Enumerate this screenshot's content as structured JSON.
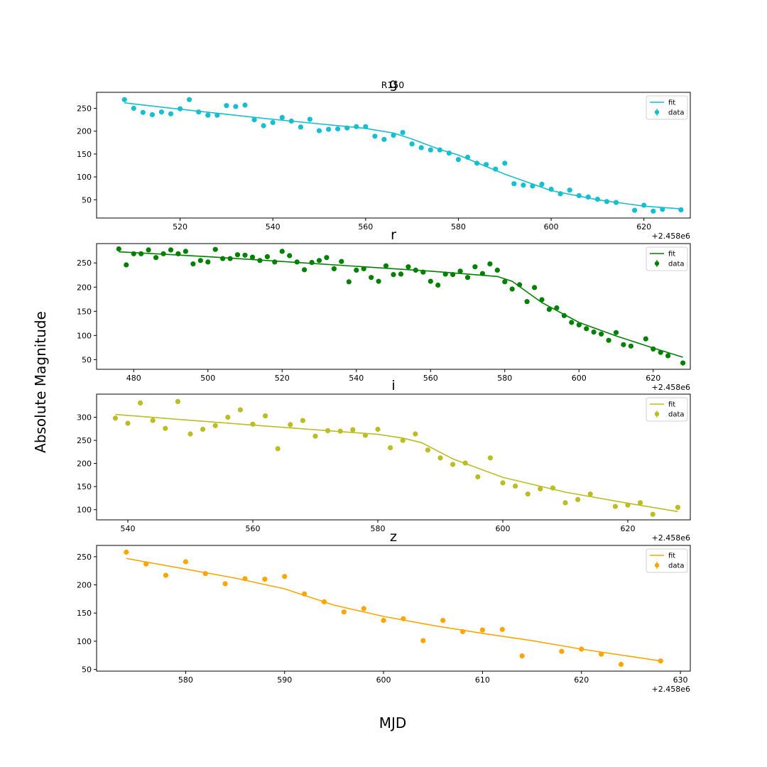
{
  "figure": {
    "suptitle": "R150",
    "ylabel": "Absolute Magnitude",
    "xlabel": "MJD",
    "x_offset_label": "+2.458e6"
  },
  "chart_data": [
    {
      "type": "scatter",
      "title": "g",
      "color": "#17becf",
      "xlim": [
        502,
        630
      ],
      "ylim": [
        10,
        285
      ],
      "xticks": [
        520,
        540,
        560,
        580,
        600,
        620
      ],
      "yticks": [
        50,
        100,
        150,
        200,
        250
      ],
      "legend": [
        "fit",
        "data"
      ],
      "legend_position": "upper right",
      "data": {
        "x": [
          508,
          510,
          512,
          514,
          516,
          518,
          520,
          522,
          524,
          526,
          528,
          530,
          532,
          534,
          536,
          538,
          540,
          542,
          544,
          546,
          548,
          550,
          552,
          554,
          556,
          558,
          560,
          562,
          564,
          566,
          568,
          570,
          572,
          574,
          576,
          578,
          580,
          582,
          584,
          586,
          588,
          590,
          592,
          594,
          596,
          598,
          600,
          602,
          604,
          606,
          608,
          610,
          612,
          614,
          618,
          620,
          622,
          624,
          628
        ],
        "y": [
          269,
          250,
          241,
          236,
          242,
          238,
          249,
          269,
          242,
          235,
          235,
          256,
          254,
          257,
          225,
          212,
          219,
          230,
          222,
          209,
          226,
          201,
          204,
          205,
          207,
          210,
          210,
          189,
          182,
          191,
          197,
          172,
          164,
          159,
          159,
          152,
          138,
          143,
          130,
          127,
          117,
          130,
          85,
          82,
          80,
          84,
          73,
          63,
          71,
          59,
          56,
          51,
          46,
          44,
          27,
          38,
          25,
          29,
          28
        ]
      },
      "fit": {
        "x": [
          508,
          520,
          540,
          560,
          566,
          570,
          576,
          580,
          590,
          600,
          610,
          620,
          628
        ],
        "y": [
          262,
          248,
          226,
          206,
          196,
          183,
          160,
          148,
          106,
          70,
          50,
          36,
          30
        ]
      }
    },
    {
      "type": "scatter",
      "title": "r",
      "color": "#008000",
      "xlim": [
        470,
        630
      ],
      "ylim": [
        30,
        290
      ],
      "xticks": [
        480,
        500,
        520,
        540,
        560,
        580,
        600,
        620
      ],
      "yticks": [
        50,
        100,
        150,
        200,
        250
      ],
      "legend": [
        "fit",
        "data"
      ],
      "legend_position": "upper right",
      "data": {
        "x": [
          476,
          478,
          480,
          482,
          484,
          486,
          488,
          490,
          492,
          494,
          496,
          498,
          500,
          502,
          504,
          506,
          508,
          510,
          512,
          514,
          516,
          518,
          520,
          522,
          524,
          526,
          528,
          530,
          532,
          534,
          536,
          538,
          540,
          542,
          544,
          546,
          548,
          550,
          552,
          554,
          556,
          558,
          560,
          562,
          564,
          566,
          568,
          570,
          572,
          574,
          576,
          578,
          580,
          582,
          584,
          586,
          588,
          590,
          592,
          594,
          596,
          598,
          600,
          602,
          604,
          606,
          608,
          610,
          612,
          614,
          618,
          620,
          622,
          624,
          628
        ],
        "y": [
          279,
          246,
          269,
          269,
          277,
          261,
          269,
          277,
          269,
          274,
          248,
          255,
          252,
          278,
          259,
          259,
          267,
          266,
          262,
          255,
          263,
          252,
          274,
          265,
          252,
          236,
          251,
          255,
          261,
          238,
          253,
          211,
          235,
          238,
          220,
          212,
          244,
          226,
          227,
          242,
          235,
          231,
          212,
          204,
          227,
          226,
          233,
          220,
          242,
          228,
          248,
          235,
          211,
          196,
          205,
          170,
          199,
          174,
          154,
          157,
          141,
          127,
          122,
          114,
          107,
          103,
          90,
          106,
          81,
          78,
          93,
          72,
          65,
          58,
          43
        ]
      },
      "fit": {
        "x": [
          476,
          500,
          520,
          540,
          560,
          578,
          582,
          586,
          590,
          600,
          610,
          620,
          628
        ],
        "y": [
          273,
          263,
          253,
          243,
          233,
          222,
          212,
          190,
          168,
          127,
          99,
          74,
          55
        ]
      }
    },
    {
      "type": "scatter",
      "title": "i",
      "color": "#bcbd22",
      "xlim": [
        535,
        630
      ],
      "ylim": [
        78,
        350
      ],
      "xticks": [
        540,
        560,
        580,
        600,
        620
      ],
      "yticks": [
        100,
        150,
        200,
        250,
        300
      ],
      "legend": [
        "fit",
        "data"
      ],
      "legend_position": "upper right",
      "data": {
        "x": [
          538,
          540,
          542,
          544,
          546,
          548,
          550,
          552,
          554,
          556,
          558,
          560,
          562,
          564,
          566,
          568,
          570,
          572,
          574,
          576,
          578,
          580,
          582,
          584,
          586,
          588,
          590,
          592,
          594,
          596,
          598,
          600,
          602,
          604,
          606,
          608,
          610,
          612,
          614,
          618,
          620,
          622,
          624,
          628
        ],
        "y": [
          298,
          287,
          331,
          293,
          276,
          334,
          264,
          274,
          282,
          300,
          316,
          285,
          303,
          232,
          284,
          293,
          259,
          271,
          270,
          273,
          261,
          274,
          234,
          250,
          264,
          229,
          212,
          198,
          201,
          171,
          212,
          158,
          151,
          134,
          145,
          147,
          115,
          122,
          134,
          107,
          110,
          115,
          90,
          105
        ]
      },
      "fit": {
        "x": [
          538,
          560,
          580,
          584,
          587,
          592,
          600,
          610,
          620,
          628
        ],
        "y": [
          306,
          283,
          263,
          255,
          245,
          210,
          170,
          138,
          114,
          96
        ]
      }
    },
    {
      "type": "scatter",
      "title": "z",
      "color": "#ffa500",
      "xlim": [
        571,
        631
      ],
      "ylim": [
        47,
        270
      ],
      "xticks": [
        580,
        590,
        600,
        610,
        620,
        630
      ],
      "yticks": [
        50,
        100,
        150,
        200,
        250
      ],
      "legend": [
        "fit",
        "data"
      ],
      "legend_position": "upper right",
      "data": {
        "x": [
          574,
          576,
          578,
          580,
          582,
          584,
          586,
          588,
          590,
          592,
          594,
          596,
          598,
          600,
          602,
          604,
          606,
          608,
          610,
          612,
          614,
          618,
          620,
          622,
          624,
          628
        ],
        "y": [
          258,
          237,
          217,
          241,
          220,
          202,
          211,
          210,
          215,
          184,
          170,
          152,
          158,
          137,
          140,
          101,
          137,
          117,
          120,
          121,
          74,
          82,
          86,
          77,
          59,
          65
        ]
      },
      "fit": {
        "x": [
          574,
          580,
          585,
          590,
          595,
          600,
          605,
          610,
          615,
          620,
          625,
          628
        ],
        "y": [
          247,
          228,
          212,
          193,
          164,
          144,
          128,
          114,
          101,
          86,
          73,
          65
        ]
      }
    }
  ]
}
